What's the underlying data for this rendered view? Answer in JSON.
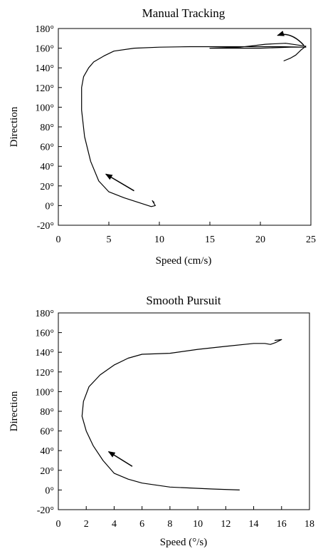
{
  "chart_data": [
    {
      "type": "line",
      "title": "Manual Tracking",
      "xlabel": "Speed (cm/s)",
      "ylabel": "Direction",
      "xlim": [
        0,
        25
      ],
      "ylim": [
        -20,
        180
      ],
      "xticks": [
        "0",
        "5",
        "10",
        "15",
        "20",
        "25"
      ],
      "xtick_values": [
        0,
        5,
        10,
        15,
        20,
        25
      ],
      "yticks": [
        "-20°",
        "0°",
        "20°",
        "40°",
        "60°",
        "80°",
        "100°",
        "120°",
        "140°",
        "160°",
        "180°"
      ],
      "ytick_values": [
        -20,
        0,
        20,
        40,
        60,
        80,
        100,
        120,
        140,
        160,
        180
      ],
      "grid": false,
      "legend": "none",
      "series": [
        {
          "x": [
            9.5,
            9.3,
            9.6,
            9.2,
            8,
            6.5,
            5,
            4,
            3.2,
            2.6,
            2.3,
            2.3,
            2.5,
            3,
            3.5,
            4.5,
            5.5,
            7.5,
            10,
            13,
            16,
            19,
            22,
            24.5,
            23,
            20,
            17,
            15,
            18,
            20.5,
            22.5,
            24.5,
            24,
            23.5,
            23,
            22.3
          ],
          "y": [
            3,
            5,
            0,
            -1,
            3,
            8,
            14,
            25,
            45,
            70,
            97,
            120,
            131,
            140,
            146,
            152,
            157,
            160,
            161,
            161.5,
            161.5,
            161.5,
            161.5,
            161,
            161,
            160,
            160,
            160,
            161,
            164,
            165,
            162,
            158,
            153,
            150,
            147
          ]
        }
      ],
      "annotations": [
        {
          "type": "arrow",
          "from": [
            7.5,
            15
          ],
          "to": [
            4.7,
            32
          ]
        },
        {
          "type": "arrow",
          "from": [
            24.3,
            163
          ],
          "to": [
            21.7,
            173
          ],
          "curved": true
        }
      ]
    },
    {
      "type": "line",
      "title": "Smooth Pursuit",
      "xlabel": "Speed (°/s)",
      "ylabel": "Direction",
      "xlim": [
        0,
        18
      ],
      "ylim": [
        -20,
        180
      ],
      "xticks": [
        "0",
        "2",
        "4",
        "6",
        "8",
        "10",
        "12",
        "14",
        "16",
        "18"
      ],
      "xtick_values": [
        0,
        2,
        4,
        6,
        8,
        10,
        12,
        14,
        16,
        18
      ],
      "yticks": [
        "-20°",
        "0°",
        "20°",
        "40°",
        "60°",
        "80°",
        "100°",
        "120°",
        "140°",
        "160°",
        "180°"
      ],
      "ytick_values": [
        -20,
        0,
        20,
        40,
        60,
        80,
        100,
        120,
        140,
        160,
        180
      ],
      "grid": false,
      "legend": "none",
      "series": [
        {
          "x": [
            13,
            11,
            8,
            6,
            5,
            4,
            3.2,
            2.5,
            2,
            1.7,
            1.8,
            2.2,
            3,
            4,
            5,
            6,
            8,
            10,
            12,
            14,
            14.8,
            15.2,
            15.6,
            16,
            15.5
          ],
          "y": [
            0,
            1,
            3,
            7,
            11,
            17,
            30,
            45,
            60,
            75,
            90,
            105,
            117,
            127,
            134,
            138,
            139,
            143,
            146,
            149,
            149,
            148,
            150,
            153,
            152
          ]
        }
      ],
      "annotations": [
        {
          "type": "arrow",
          "from": [
            5.3,
            24
          ],
          "to": [
            3.6,
            39
          ]
        }
      ]
    }
  ]
}
